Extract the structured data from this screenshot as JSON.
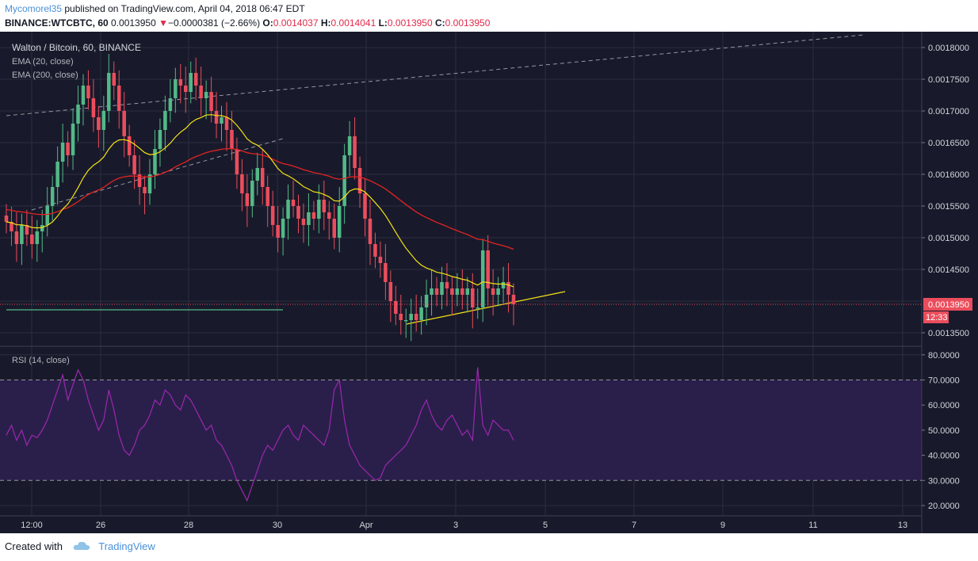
{
  "header": {
    "author": "Mycomorel35",
    "published": "published on TradingView.com, April 04, 2018 06:47 EDT",
    "symbol": "BINANCE:WTCBTC, 60",
    "price": "0.0013950",
    "change_arrow": "▼",
    "change": "−0.0000381 (−2.66%)",
    "o_label": "O:",
    "o_value": "0.0014037",
    "h_label": "H:",
    "h_value": "0.0014041",
    "l_label": "L:",
    "l_value": "0.0013950",
    "c_label": "C:",
    "c_value": "0.0013950"
  },
  "legend": {
    "title": "Walton / Bitcoin, 60, BINANCE",
    "ema20": "EMA (20, close)",
    "ema200": "EMA (200, close)",
    "rsi": "RSI (14, close)"
  },
  "price_axis": {
    "ticks": [
      "0.0018000",
      "0.0017500",
      "0.0017000",
      "0.0016500",
      "0.0016000",
      "0.0015500",
      "0.0015000",
      "0.0014500",
      "0.0013500"
    ],
    "last_price_label": "0.0013950",
    "countdown": "12:33"
  },
  "rsi_axis": {
    "ticks": [
      "80.0000",
      "70.0000",
      "60.0000",
      "50.0000",
      "40.0000",
      "30.0000",
      "20.0000"
    ]
  },
  "time_axis": {
    "ticks": [
      "12:00",
      "26",
      "28",
      "30",
      "Apr",
      "3",
      "5",
      "7",
      "9",
      "11",
      "13"
    ]
  },
  "colors": {
    "background": "#181a2b",
    "grid": "#2b2e40",
    "up": "#53b987",
    "down": "#eb4d5c",
    "ema20": "#f5e313",
    "ema200": "#e32322",
    "rsi": "#9c27b0",
    "rsi_band": "#2a1f4a",
    "trend_yellow": "#f5e313",
    "support_green": "#53b987",
    "last_price": "#eb4d5c"
  },
  "footer": {
    "created_with": "Created with",
    "brand": "TradingView"
  },
  "chart_data": {
    "type": "candlestick",
    "symbol": "BINANCE:WTCBTC",
    "interval": "60",
    "ylim": [
      0.00133,
      0.00182
    ],
    "x_range_days": [
      "Mar 24 12:00",
      "Apr 13"
    ],
    "closes": [
      0.001525,
      0.00151,
      0.00149,
      0.00152,
      0.001505,
      0.00149,
      0.00151,
      0.00152,
      0.00155,
      0.00158,
      0.00162,
      0.00165,
      0.00163,
      0.00168,
      0.00171,
      0.00174,
      0.00172,
      0.00169,
      0.00167,
      0.0017,
      0.00176,
      0.00174,
      0.0017,
      0.00166,
      0.00163,
      0.0016,
      0.00158,
      0.00157,
      0.0016,
      0.00164,
      0.00167,
      0.0017,
      0.00172,
      0.00175,
      0.00174,
      0.00173,
      0.00176,
      0.00174,
      0.00172,
      0.00173,
      0.0017,
      0.00168,
      0.00169,
      0.00167,
      0.00164,
      0.0016,
      0.00157,
      0.00155,
      0.00159,
      0.00161,
      0.00158,
      0.00155,
      0.00152,
      0.0015,
      0.00153,
      0.00156,
      0.00155,
      0.00153,
      0.00152,
      0.00154,
      0.00153,
      0.00156,
      0.00154,
      0.00153,
      0.0015,
      0.00155,
      0.00163,
      0.00166,
      0.00161,
      0.00157,
      0.00153,
      0.00149,
      0.00147,
      0.00146,
      0.00143,
      0.0014,
      0.00138,
      0.00137,
      0.00137,
      0.00138,
      0.00137,
      0.00139,
      0.00141,
      0.00142,
      0.00141,
      0.00143,
      0.00142,
      0.00141,
      0.00142,
      0.00141,
      0.00142,
      0.00139,
      0.00139,
      0.00148,
      0.00142,
      0.00141,
      0.00142,
      0.00143,
      0.00141,
      0.001395
    ],
    "ema20_last": 0.001405,
    "ema200_last": 0.00149,
    "rsi": [
      48,
      52,
      46,
      50,
      44,
      48,
      47,
      50,
      54,
      60,
      66,
      72,
      62,
      68,
      74,
      70,
      62,
      56,
      50,
      54,
      66,
      58,
      48,
      42,
      40,
      44,
      50,
      52,
      56,
      62,
      60,
      66,
      64,
      60,
      58,
      64,
      62,
      58,
      54,
      50,
      52,
      46,
      44,
      40,
      36,
      30,
      26,
      22,
      28,
      34,
      40,
      44,
      42,
      46,
      50,
      52,
      48,
      46,
      52,
      50,
      48,
      46,
      44,
      50,
      66,
      70,
      54,
      44,
      40,
      36,
      34,
      32,
      30,
      31,
      36,
      38,
      40,
      42,
      44,
      48,
      52,
      58,
      62,
      56,
      52,
      50,
      54,
      56,
      52,
      48,
      50,
      46,
      75,
      52,
      48,
      54,
      52,
      50,
      50,
      46
    ],
    "rsi_levels": {
      "upper": 70,
      "lower": 30
    },
    "rsi_ylim": [
      15,
      85
    ]
  }
}
